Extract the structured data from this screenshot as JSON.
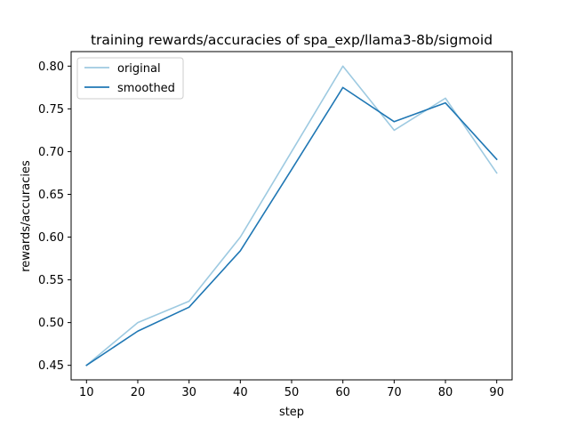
{
  "chart_data": {
    "type": "line",
    "title": "training rewards/accuracies of spa_exp/llama3-8b/sigmoid",
    "xlabel": "step",
    "ylabel": "rewards/accuracies",
    "x": [
      10,
      20,
      30,
      40,
      50,
      60,
      70,
      80,
      90
    ],
    "xlim": [
      7,
      93
    ],
    "ylim": [
      0.433,
      0.817
    ],
    "xticks": [
      10,
      20,
      30,
      40,
      50,
      60,
      70,
      80,
      90
    ],
    "yticks": [
      0.45,
      0.5,
      0.55,
      0.6,
      0.65,
      0.7,
      0.75,
      0.8
    ],
    "ytick_labels": [
      "0.45",
      "0.50",
      "0.55",
      "0.60",
      "0.65",
      "0.70",
      "0.75",
      "0.80"
    ],
    "grid": false,
    "legend_position": "top-left",
    "series": [
      {
        "name": "original",
        "color": "#9ecae1",
        "values": [
          0.45,
          0.5,
          0.525,
          0.6,
          0.7,
          0.8,
          0.725,
          0.7625,
          0.675
        ]
      },
      {
        "name": "smoothed",
        "color": "#1f77b4",
        "values": [
          0.45,
          0.49,
          0.518,
          0.584,
          0.679,
          0.775,
          0.735,
          0.757,
          0.691
        ]
      }
    ]
  }
}
